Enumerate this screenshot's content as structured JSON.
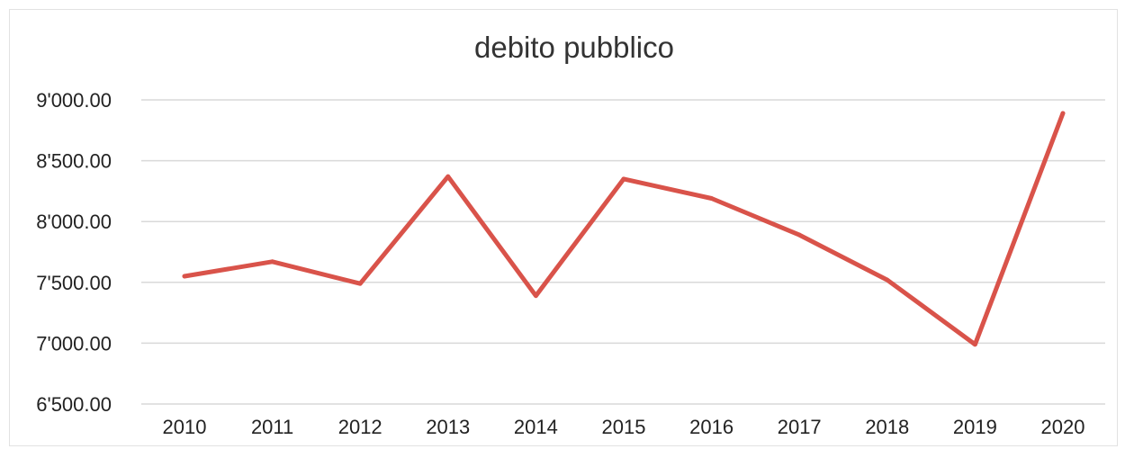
{
  "chart_data": {
    "type": "line",
    "title": "debito pubblico",
    "xlabel": "",
    "ylabel": "",
    "categories": [
      "2010",
      "2011",
      "2012",
      "2013",
      "2014",
      "2015",
      "2016",
      "2017",
      "2018",
      "2019",
      "2020"
    ],
    "series": [
      {
        "values": [
          7550,
          7670,
          7490,
          8370,
          7390,
          8350,
          8190,
          7890,
          7520,
          6990,
          8890
        ],
        "color": "#d9534a"
      }
    ],
    "ylim": [
      6500,
      9000
    ],
    "y_ticks": [
      6500,
      7000,
      7500,
      8000,
      8500,
      9000
    ],
    "y_tick_labels": [
      "6'500.00",
      "7'000.00",
      "7'500.00",
      "8'000.00",
      "8'500.00",
      "9'000.00"
    ],
    "grid": true,
    "legend": "none"
  }
}
